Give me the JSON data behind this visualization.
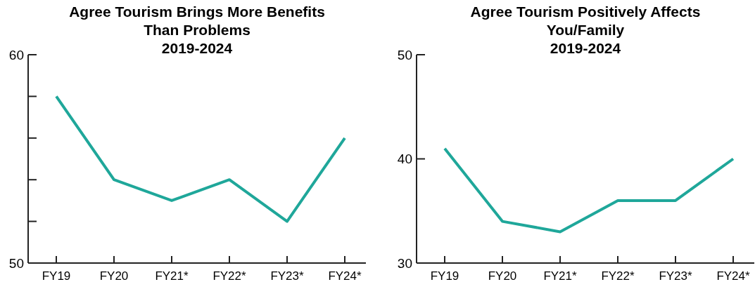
{
  "chart_data": [
    {
      "type": "line",
      "title": "Agree Tourism Brings More Benefits Than Problems",
      "subtitle": "2019-2024",
      "categories": [
        "FY19",
        "FY20",
        "FY21*",
        "FY22*",
        "FY23*",
        "FY24*"
      ],
      "series": [
        {
          "color": "#1fa79a",
          "values": [
            58,
            54,
            53,
            54,
            52,
            56
          ]
        }
      ],
      "ylim": [
        50,
        60
      ],
      "yticks": [
        50,
        {
          "value": 52,
          "label": null
        },
        {
          "value": 54,
          "label": null
        },
        {
          "value": 56,
          "label": null
        },
        {
          "value": 58,
          "label": null
        },
        60
      ],
      "marker": "none",
      "line_style": "solid"
    },
    {
      "type": "line",
      "title": "Agree Tourism Positively Affects You/Family",
      "subtitle": "2019-2024",
      "categories": [
        "FY19",
        "FY20",
        "FY21*",
        "FY22*",
        "FY23*",
        "FY24*"
      ],
      "series": [
        {
          "color": "#1fa79a",
          "values": [
            41,
            34,
            33,
            36,
            36,
            40
          ]
        }
      ],
      "ylim": [
        30,
        50
      ],
      "yticks": [
        30,
        40,
        50
      ],
      "marker": "none",
      "line_style": "solid"
    }
  ]
}
